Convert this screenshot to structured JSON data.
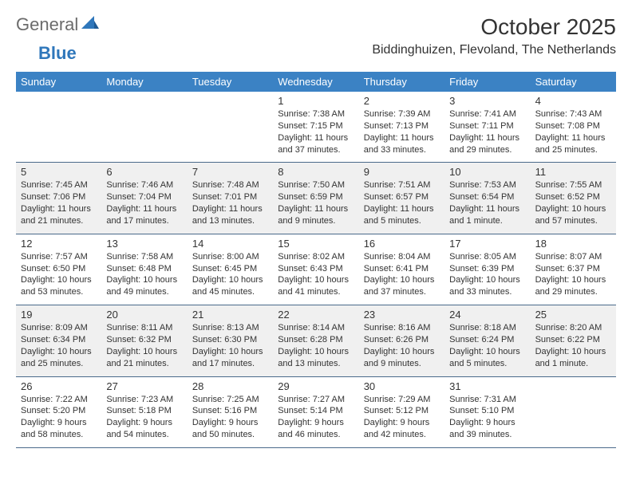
{
  "brand": {
    "part1": "General",
    "part2": "Blue"
  },
  "title": "October 2025",
  "location": "Biddinghuizen, Flevoland, The Netherlands",
  "colors": {
    "header_bg": "#3b82c4",
    "header_text": "#ffffff",
    "shaded_bg": "#f0f0f0",
    "border": "#4a6a8a",
    "brand_gray": "#6b6b6b",
    "brand_blue": "#2f77bb"
  },
  "day_names": [
    "Sunday",
    "Monday",
    "Tuesday",
    "Wednesday",
    "Thursday",
    "Friday",
    "Saturday"
  ],
  "weeks": [
    {
      "shaded": false,
      "cells": [
        {
          "n": "",
          "sr": "",
          "ss": "",
          "dl": ""
        },
        {
          "n": "",
          "sr": "",
          "ss": "",
          "dl": ""
        },
        {
          "n": "",
          "sr": "",
          "ss": "",
          "dl": ""
        },
        {
          "n": "1",
          "sr": "Sunrise: 7:38 AM",
          "ss": "Sunset: 7:15 PM",
          "dl": "Daylight: 11 hours and 37 minutes."
        },
        {
          "n": "2",
          "sr": "Sunrise: 7:39 AM",
          "ss": "Sunset: 7:13 PM",
          "dl": "Daylight: 11 hours and 33 minutes."
        },
        {
          "n": "3",
          "sr": "Sunrise: 7:41 AM",
          "ss": "Sunset: 7:11 PM",
          "dl": "Daylight: 11 hours and 29 minutes."
        },
        {
          "n": "4",
          "sr": "Sunrise: 7:43 AM",
          "ss": "Sunset: 7:08 PM",
          "dl": "Daylight: 11 hours and 25 minutes."
        }
      ]
    },
    {
      "shaded": true,
      "cells": [
        {
          "n": "5",
          "sr": "Sunrise: 7:45 AM",
          "ss": "Sunset: 7:06 PM",
          "dl": "Daylight: 11 hours and 21 minutes."
        },
        {
          "n": "6",
          "sr": "Sunrise: 7:46 AM",
          "ss": "Sunset: 7:04 PM",
          "dl": "Daylight: 11 hours and 17 minutes."
        },
        {
          "n": "7",
          "sr": "Sunrise: 7:48 AM",
          "ss": "Sunset: 7:01 PM",
          "dl": "Daylight: 11 hours and 13 minutes."
        },
        {
          "n": "8",
          "sr": "Sunrise: 7:50 AM",
          "ss": "Sunset: 6:59 PM",
          "dl": "Daylight: 11 hours and 9 minutes."
        },
        {
          "n": "9",
          "sr": "Sunrise: 7:51 AM",
          "ss": "Sunset: 6:57 PM",
          "dl": "Daylight: 11 hours and 5 minutes."
        },
        {
          "n": "10",
          "sr": "Sunrise: 7:53 AM",
          "ss": "Sunset: 6:54 PM",
          "dl": "Daylight: 11 hours and 1 minute."
        },
        {
          "n": "11",
          "sr": "Sunrise: 7:55 AM",
          "ss": "Sunset: 6:52 PM",
          "dl": "Daylight: 10 hours and 57 minutes."
        }
      ]
    },
    {
      "shaded": false,
      "cells": [
        {
          "n": "12",
          "sr": "Sunrise: 7:57 AM",
          "ss": "Sunset: 6:50 PM",
          "dl": "Daylight: 10 hours and 53 minutes."
        },
        {
          "n": "13",
          "sr": "Sunrise: 7:58 AM",
          "ss": "Sunset: 6:48 PM",
          "dl": "Daylight: 10 hours and 49 minutes."
        },
        {
          "n": "14",
          "sr": "Sunrise: 8:00 AM",
          "ss": "Sunset: 6:45 PM",
          "dl": "Daylight: 10 hours and 45 minutes."
        },
        {
          "n": "15",
          "sr": "Sunrise: 8:02 AM",
          "ss": "Sunset: 6:43 PM",
          "dl": "Daylight: 10 hours and 41 minutes."
        },
        {
          "n": "16",
          "sr": "Sunrise: 8:04 AM",
          "ss": "Sunset: 6:41 PM",
          "dl": "Daylight: 10 hours and 37 minutes."
        },
        {
          "n": "17",
          "sr": "Sunrise: 8:05 AM",
          "ss": "Sunset: 6:39 PM",
          "dl": "Daylight: 10 hours and 33 minutes."
        },
        {
          "n": "18",
          "sr": "Sunrise: 8:07 AM",
          "ss": "Sunset: 6:37 PM",
          "dl": "Daylight: 10 hours and 29 minutes."
        }
      ]
    },
    {
      "shaded": true,
      "cells": [
        {
          "n": "19",
          "sr": "Sunrise: 8:09 AM",
          "ss": "Sunset: 6:34 PM",
          "dl": "Daylight: 10 hours and 25 minutes."
        },
        {
          "n": "20",
          "sr": "Sunrise: 8:11 AM",
          "ss": "Sunset: 6:32 PM",
          "dl": "Daylight: 10 hours and 21 minutes."
        },
        {
          "n": "21",
          "sr": "Sunrise: 8:13 AM",
          "ss": "Sunset: 6:30 PM",
          "dl": "Daylight: 10 hours and 17 minutes."
        },
        {
          "n": "22",
          "sr": "Sunrise: 8:14 AM",
          "ss": "Sunset: 6:28 PM",
          "dl": "Daylight: 10 hours and 13 minutes."
        },
        {
          "n": "23",
          "sr": "Sunrise: 8:16 AM",
          "ss": "Sunset: 6:26 PM",
          "dl": "Daylight: 10 hours and 9 minutes."
        },
        {
          "n": "24",
          "sr": "Sunrise: 8:18 AM",
          "ss": "Sunset: 6:24 PM",
          "dl": "Daylight: 10 hours and 5 minutes."
        },
        {
          "n": "25",
          "sr": "Sunrise: 8:20 AM",
          "ss": "Sunset: 6:22 PM",
          "dl": "Daylight: 10 hours and 1 minute."
        }
      ]
    },
    {
      "shaded": false,
      "cells": [
        {
          "n": "26",
          "sr": "Sunrise: 7:22 AM",
          "ss": "Sunset: 5:20 PM",
          "dl": "Daylight: 9 hours and 58 minutes."
        },
        {
          "n": "27",
          "sr": "Sunrise: 7:23 AM",
          "ss": "Sunset: 5:18 PM",
          "dl": "Daylight: 9 hours and 54 minutes."
        },
        {
          "n": "28",
          "sr": "Sunrise: 7:25 AM",
          "ss": "Sunset: 5:16 PM",
          "dl": "Daylight: 9 hours and 50 minutes."
        },
        {
          "n": "29",
          "sr": "Sunrise: 7:27 AM",
          "ss": "Sunset: 5:14 PM",
          "dl": "Daylight: 9 hours and 46 minutes."
        },
        {
          "n": "30",
          "sr": "Sunrise: 7:29 AM",
          "ss": "Sunset: 5:12 PM",
          "dl": "Daylight: 9 hours and 42 minutes."
        },
        {
          "n": "31",
          "sr": "Sunrise: 7:31 AM",
          "ss": "Sunset: 5:10 PM",
          "dl": "Daylight: 9 hours and 39 minutes."
        },
        {
          "n": "",
          "sr": "",
          "ss": "",
          "dl": ""
        }
      ]
    }
  ]
}
